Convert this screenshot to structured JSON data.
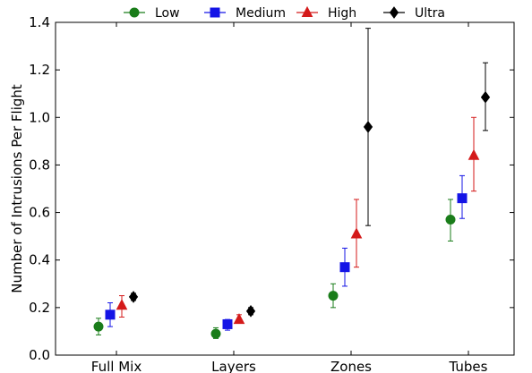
{
  "chart_data": {
    "type": "scatter",
    "categories": [
      "Full Mix",
      "Layers",
      "Zones",
      "Tubes"
    ],
    "xlabel": "",
    "ylabel": "Number of Intrusions Per Flight",
    "ylim": [
      0.0,
      1.4
    ],
    "yticks": [
      "0.0",
      "0.2",
      "0.4",
      "0.6",
      "0.8",
      "1.0",
      "1.2",
      "1.4"
    ],
    "grid": false,
    "legend_position": "top-center, above plot",
    "series": [
      {
        "name": "Low",
        "color": "#1a7d1a",
        "marker": "circle",
        "values": [
          0.12,
          0.09,
          0.25,
          0.57
        ],
        "err_low": [
          0.085,
          0.07,
          0.2,
          0.48
        ],
        "err_high": [
          0.155,
          0.115,
          0.3,
          0.655
        ]
      },
      {
        "name": "Medium",
        "color": "#1414e6",
        "marker": "square",
        "values": [
          0.17,
          0.13,
          0.37,
          0.66
        ],
        "err_low": [
          0.12,
          0.105,
          0.29,
          0.575
        ],
        "err_high": [
          0.22,
          0.15,
          0.45,
          0.755
        ]
      },
      {
        "name": "High",
        "color": "#d41a1a",
        "marker": "triangle",
        "values": [
          0.21,
          0.15,
          0.51,
          0.84
        ],
        "err_low": [
          0.16,
          0.135,
          0.37,
          0.69
        ],
        "err_high": [
          0.25,
          0.17,
          0.655,
          1.0
        ]
      },
      {
        "name": "Ultra",
        "color": "#000000",
        "marker": "diamond",
        "values": [
          0.245,
          0.185,
          0.96,
          1.085
        ],
        "err_low": [
          0.23,
          0.17,
          0.545,
          0.945
        ],
        "err_high": [
          0.26,
          0.2,
          1.375,
          1.23
        ]
      }
    ]
  }
}
